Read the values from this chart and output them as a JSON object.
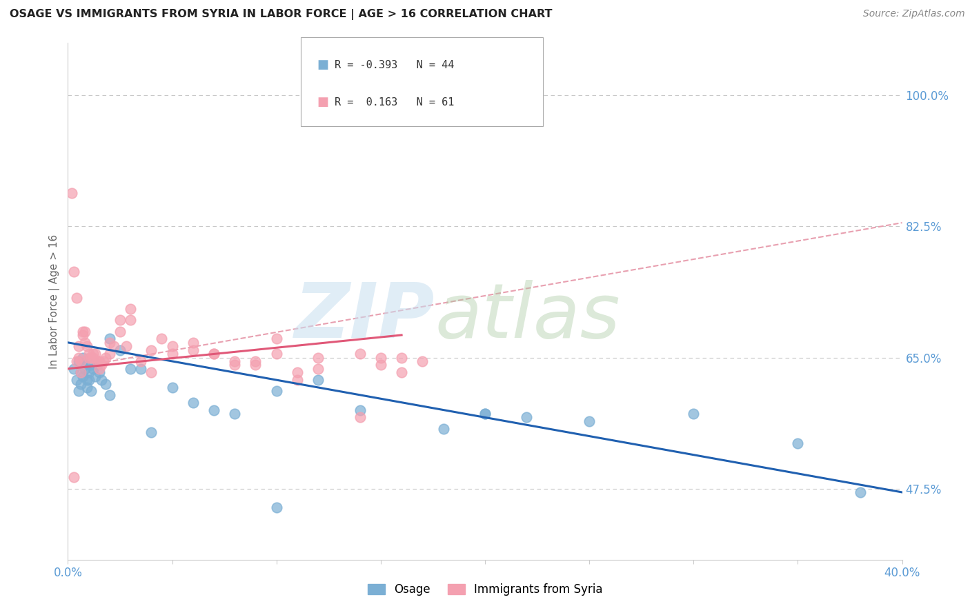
{
  "title": "OSAGE VS IMMIGRANTS FROM SYRIA IN LABOR FORCE | AGE > 16 CORRELATION CHART",
  "source": "Source: ZipAtlas.com",
  "ylabel_ticks": [
    47.5,
    65.0,
    82.5,
    100.0
  ],
  "ylabel_labels": [
    "47.5%",
    "65.0%",
    "82.5%",
    "100.0%"
  ],
  "x_min": 0.0,
  "x_max": 40.0,
  "y_min": 38.0,
  "y_max": 107.0,
  "osage_color": "#7bafd4",
  "syria_color": "#f4a0b0",
  "osage_line_color": "#2060b0",
  "syria_line_color": "#e05878",
  "syria_dashed_color": "#e8a0b0",
  "legend_label1": "Osage",
  "legend_label2": "Immigrants from Syria",
  "background_color": "#ffffff",
  "grid_color": "#c8c8c8",
  "axis_label_color": "#5b9bd5",
  "title_color": "#222222",
  "osage_points_x": [
    0.3,
    0.4,
    0.5,
    0.5,
    0.6,
    0.6,
    0.7,
    0.7,
    0.8,
    0.8,
    0.9,
    0.9,
    1.0,
    1.0,
    1.1,
    1.1,
    1.2,
    1.3,
    1.4,
    1.5,
    1.6,
    1.8,
    2.0,
    2.0,
    2.5,
    3.0,
    3.5,
    4.0,
    5.0,
    6.0,
    7.0,
    8.0,
    10.0,
    12.0,
    14.0,
    18.0,
    20.0,
    22.0,
    25.0,
    30.0,
    35.0,
    38.0,
    20.0,
    10.0
  ],
  "osage_points_y": [
    63.5,
    62.0,
    64.5,
    60.5,
    63.0,
    61.5,
    65.0,
    62.5,
    64.0,
    63.5,
    62.0,
    61.0,
    63.0,
    62.0,
    64.0,
    60.5,
    63.5,
    62.5,
    64.0,
    63.0,
    62.0,
    61.5,
    67.5,
    60.0,
    66.0,
    63.5,
    63.5,
    55.0,
    61.0,
    59.0,
    58.0,
    57.5,
    60.5,
    62.0,
    58.0,
    55.5,
    57.5,
    57.0,
    56.5,
    57.5,
    53.5,
    47.0,
    57.5,
    45.0
  ],
  "syria_points_x": [
    0.2,
    0.3,
    0.4,
    0.5,
    0.6,
    0.7,
    0.8,
    0.9,
    1.0,
    1.1,
    1.2,
    1.3,
    1.4,
    1.5,
    1.6,
    1.7,
    1.8,
    2.0,
    2.2,
    2.5,
    2.8,
    3.0,
    3.5,
    4.0,
    4.5,
    5.0,
    6.0,
    7.0,
    8.0,
    9.0,
    10.0,
    11.0,
    12.0,
    14.0,
    15.0,
    16.0,
    0.3,
    0.4,
    0.5,
    0.6,
    0.7,
    0.8,
    1.0,
    1.2,
    1.5,
    2.0,
    2.5,
    3.0,
    4.0,
    5.0,
    6.0,
    7.0,
    8.0,
    9.0,
    10.0,
    11.0,
    12.0,
    14.0,
    15.0,
    16.0,
    17.0
  ],
  "syria_points_y": [
    87.0,
    76.5,
    73.0,
    66.5,
    64.5,
    68.0,
    68.5,
    66.5,
    65.5,
    65.0,
    65.0,
    65.5,
    64.5,
    64.5,
    64.0,
    64.5,
    65.0,
    67.0,
    66.5,
    70.0,
    66.5,
    71.5,
    64.5,
    63.0,
    67.5,
    66.5,
    66.0,
    65.5,
    64.5,
    64.0,
    67.5,
    62.0,
    63.5,
    57.0,
    64.0,
    65.0,
    49.0,
    64.5,
    65.0,
    63.0,
    68.5,
    67.0,
    65.0,
    65.5,
    63.5,
    65.5,
    68.5,
    70.0,
    66.0,
    65.5,
    67.0,
    65.5,
    64.0,
    64.5,
    65.5,
    63.0,
    65.0,
    65.5,
    65.0,
    63.0,
    64.5
  ],
  "osage_line_x0": 0.0,
  "osage_line_x1": 40.0,
  "osage_line_y0": 67.0,
  "osage_line_y1": 47.0,
  "syria_solid_x0": 0.0,
  "syria_solid_x1": 16.0,
  "syria_solid_y0": 63.5,
  "syria_solid_y1": 68.0,
  "syria_dashed_x0": 0.0,
  "syria_dashed_x1": 40.0,
  "syria_dashed_y0": 63.5,
  "syria_dashed_y1": 83.0
}
